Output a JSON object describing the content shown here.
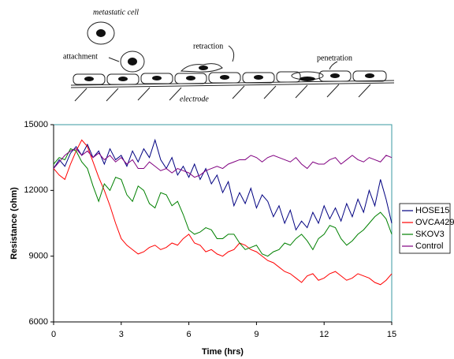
{
  "diagram": {
    "labels": [
      "metastatic cell",
      "attachment",
      "retraction",
      "penetration",
      "electrode"
    ]
  },
  "chart_data": {
    "type": "line",
    "x_label": "Time (hrs)",
    "y_label": "Resistance (ohm)",
    "x": [
      0,
      0.25,
      0.5,
      0.75,
      1,
      1.25,
      1.5,
      1.75,
      2,
      2.25,
      2.5,
      2.75,
      3,
      3.25,
      3.5,
      3.75,
      4,
      4.25,
      4.5,
      4.75,
      5,
      5.25,
      5.5,
      5.75,
      6,
      6.25,
      6.5,
      6.75,
      7,
      7.25,
      7.5,
      7.75,
      8,
      8.25,
      8.5,
      8.75,
      9,
      9.25,
      9.5,
      9.75,
      10,
      10.25,
      10.5,
      10.75,
      11,
      11.25,
      11.5,
      11.75,
      12,
      12.25,
      12.5,
      12.75,
      13,
      13.25,
      13.5,
      13.75,
      14,
      14.25,
      14.5,
      14.75,
      15
    ],
    "series": [
      {
        "name": "HOSE15",
        "color": "#000080",
        "values": [
          13000,
          13400,
          13100,
          13700,
          14000,
          13600,
          14100,
          13500,
          13800,
          13200,
          13900,
          13400,
          13600,
          13100,
          13800,
          13300,
          13900,
          13500,
          14300,
          13400,
          13000,
          13500,
          12700,
          13100,
          12600,
          13200,
          12500,
          13000,
          12300,
          12700,
          11900,
          12400,
          11300,
          11900,
          11400,
          12100,
          11200,
          11800,
          11500,
          10800,
          11300,
          10500,
          11100,
          10200,
          10600,
          10300,
          11000,
          10500,
          11300,
          10700,
          11200,
          10600,
          11400,
          10800,
          11600,
          11000,
          12000,
          11300,
          12500,
          11600,
          10500
        ]
      },
      {
        "name": "OVCA429",
        "color": "#ff0000",
        "values": [
          13000,
          12700,
          12500,
          13200,
          13800,
          14300,
          14000,
          13300,
          12600,
          12000,
          11300,
          10500,
          9800,
          9500,
          9300,
          9100,
          9200,
          9400,
          9500,
          9300,
          9400,
          9600,
          9500,
          9800,
          10000,
          9600,
          9500,
          9200,
          9300,
          9100,
          9000,
          9200,
          9300,
          9600,
          9500,
          9300,
          9200,
          9000,
          8800,
          8700,
          8500,
          8300,
          8200,
          8000,
          7800,
          8100,
          8200,
          7900,
          8000,
          8200,
          8300,
          8100,
          7900,
          8000,
          8200,
          8100,
          8000,
          7800,
          7700,
          7900,
          8200
        ]
      },
      {
        "name": "SKOV3",
        "color": "#008000",
        "values": [
          13200,
          13500,
          13400,
          13900,
          13800,
          13300,
          13000,
          12200,
          11500,
          12300,
          12000,
          12600,
          12500,
          11800,
          11500,
          12200,
          12000,
          11400,
          11200,
          11900,
          11800,
          11300,
          11500,
          10900,
          10200,
          10000,
          10100,
          10300,
          10200,
          9800,
          9800,
          10000,
          10000,
          9600,
          9300,
          9400,
          9500,
          9100,
          9000,
          9200,
          9300,
          9600,
          9500,
          9800,
          10000,
          9700,
          9300,
          9800,
          10000,
          10400,
          10300,
          9800,
          9500,
          9700,
          10000,
          10200,
          10500,
          10800,
          11000,
          10700,
          10000
        ]
      },
      {
        "name": "Control",
        "color": "#800080",
        "values": [
          13000,
          13300,
          13600,
          13800,
          13900,
          13600,
          13800,
          13500,
          13700,
          13400,
          13600,
          13300,
          13500,
          13200,
          13400,
          13000,
          13000,
          13300,
          13100,
          12900,
          13000,
          12800,
          13000,
          12900,
          12800,
          12600,
          12700,
          12900,
          13000,
          13100,
          13000,
          13200,
          13300,
          13400,
          13400,
          13600,
          13500,
          13300,
          13500,
          13600,
          13500,
          13400,
          13300,
          13500,
          13200,
          13000,
          13300,
          13200,
          13200,
          13400,
          13500,
          13200,
          13400,
          13600,
          13400,
          13300,
          13500,
          13400,
          13300,
          13600,
          13500
        ]
      }
    ],
    "xlim": [
      0,
      15
    ],
    "xticks": [
      0,
      3,
      6,
      9,
      12,
      15
    ],
    "ylim": [
      6000,
      15000
    ],
    "yticks": [
      6000,
      9000,
      12000,
      15000
    ],
    "grid": false,
    "legend": "right",
    "frame_color": "#3a9aa0"
  }
}
